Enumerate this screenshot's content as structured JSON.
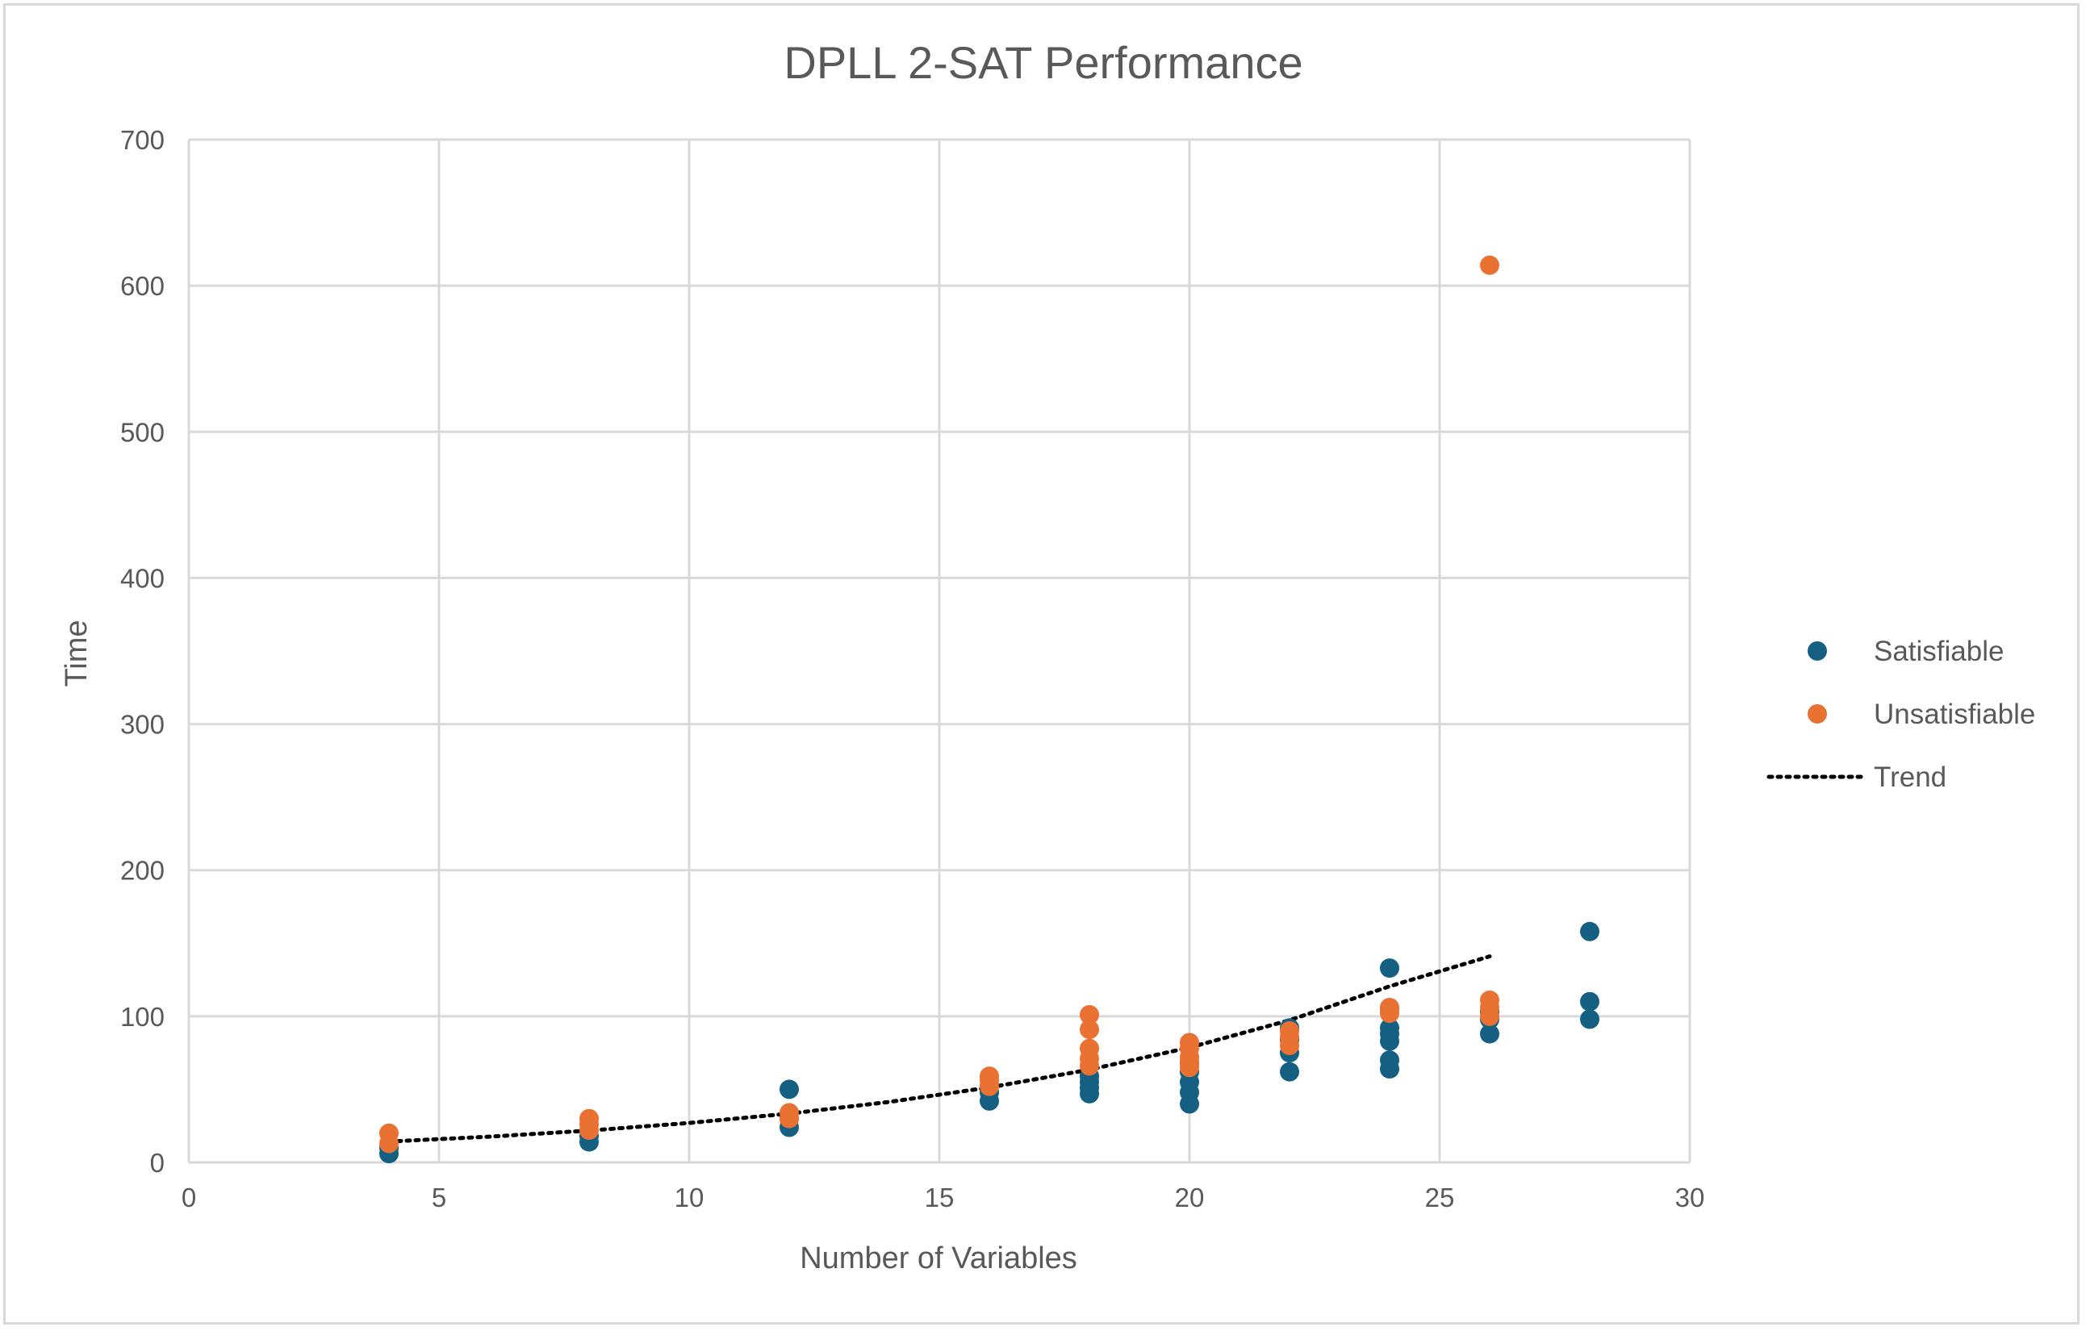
{
  "chart_data": {
    "type": "scatter",
    "title": "DPLL 2-SAT Performance",
    "xlabel": "Number of Variables",
    "ylabel": "Time",
    "xlim": [
      0,
      30
    ],
    "ylim": [
      0,
      700
    ],
    "xticks": [
      0,
      5,
      10,
      15,
      20,
      25,
      30
    ],
    "yticks": [
      0,
      100,
      200,
      300,
      400,
      500,
      600,
      700
    ],
    "grid": true,
    "legend_position": "right",
    "series": [
      {
        "name": "Satisfiable",
        "kind": "scatter",
        "color": "#156082",
        "points": [
          [
            4,
            6
          ],
          [
            4,
            10
          ],
          [
            8,
            14
          ],
          [
            8,
            18
          ],
          [
            12,
            24
          ],
          [
            12,
            30
          ],
          [
            12,
            50
          ],
          [
            16,
            42
          ],
          [
            16,
            48
          ],
          [
            16,
            52
          ],
          [
            18,
            47
          ],
          [
            18,
            51
          ],
          [
            18,
            55
          ],
          [
            18,
            59
          ],
          [
            20,
            40
          ],
          [
            20,
            48
          ],
          [
            20,
            55
          ],
          [
            20,
            62
          ],
          [
            20,
            68
          ],
          [
            22,
            62
          ],
          [
            22,
            75
          ],
          [
            22,
            84
          ],
          [
            22,
            92
          ],
          [
            24,
            64
          ],
          [
            24,
            70
          ],
          [
            24,
            83
          ],
          [
            24,
            88
          ],
          [
            24,
            92
          ],
          [
            24,
            105
          ],
          [
            24,
            133
          ],
          [
            26,
            88
          ],
          [
            26,
            98
          ],
          [
            26,
            103
          ],
          [
            28,
            98
          ],
          [
            28,
            110
          ],
          [
            28,
            158
          ]
        ]
      },
      {
        "name": "Unsatisfiable",
        "kind": "scatter",
        "color": "#E97132",
        "points": [
          [
            4,
            13
          ],
          [
            4,
            20
          ],
          [
            8,
            22
          ],
          [
            8,
            26
          ],
          [
            8,
            30
          ],
          [
            12,
            30
          ],
          [
            12,
            34
          ],
          [
            16,
            52
          ],
          [
            16,
            56
          ],
          [
            16,
            59
          ],
          [
            18,
            66
          ],
          [
            18,
            71
          ],
          [
            18,
            78
          ],
          [
            18,
            91
          ],
          [
            18,
            101
          ],
          [
            20,
            65
          ],
          [
            20,
            69
          ],
          [
            20,
            72
          ],
          [
            20,
            78
          ],
          [
            20,
            82
          ],
          [
            22,
            80
          ],
          [
            22,
            86
          ],
          [
            22,
            90
          ],
          [
            24,
            102
          ],
          [
            24,
            106
          ],
          [
            26,
            100
          ],
          [
            26,
            106
          ],
          [
            26,
            111
          ],
          [
            26,
            614
          ]
        ]
      },
      {
        "name": "Trend",
        "kind": "line",
        "style": "dotted",
        "color": "#000000",
        "x": [
          4,
          6,
          8,
          10,
          12,
          14,
          16,
          18,
          20,
          22,
          24,
          26
        ],
        "y": [
          14.3,
          17.6,
          21.8,
          27.0,
          33.4,
          41.4,
          51.3,
          63.5,
          78.6,
          97.3,
          120.5,
          141.0
        ]
      }
    ]
  }
}
